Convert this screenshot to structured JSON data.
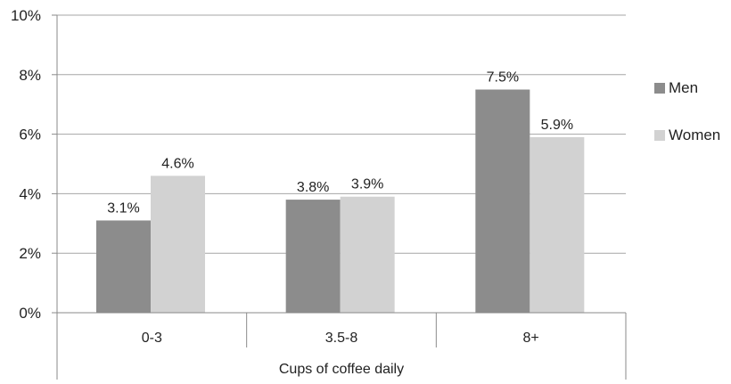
{
  "chart_data": {
    "type": "bar",
    "categories": [
      "0-3",
      "3.5-8",
      "8+"
    ],
    "series": [
      {
        "name": "Men",
        "values": [
          3.1,
          3.8,
          7.5
        ],
        "labels": [
          "3.1%",
          "3.8%",
          "7.5%"
        ],
        "color": "#8c8c8c"
      },
      {
        "name": "Women",
        "values": [
          4.6,
          3.9,
          5.9
        ],
        "labels": [
          "4.6%",
          "3.9%",
          "5.9%"
        ],
        "color": "#d2d2d2"
      }
    ],
    "title": "",
    "xlabel": "Cups of coffee daily",
    "ylabel": "",
    "ylim": [
      0,
      10
    ],
    "yticks": [
      0,
      2,
      4,
      6,
      8,
      10
    ],
    "ytick_labels": [
      "0%",
      "2%",
      "4%",
      "6%",
      "8%",
      "10%"
    ],
    "grid": true,
    "legend_position": "right",
    "colors": {
      "gridline": "#a6a6a6",
      "axis": "#8a8a8a",
      "text": "#222222"
    }
  }
}
